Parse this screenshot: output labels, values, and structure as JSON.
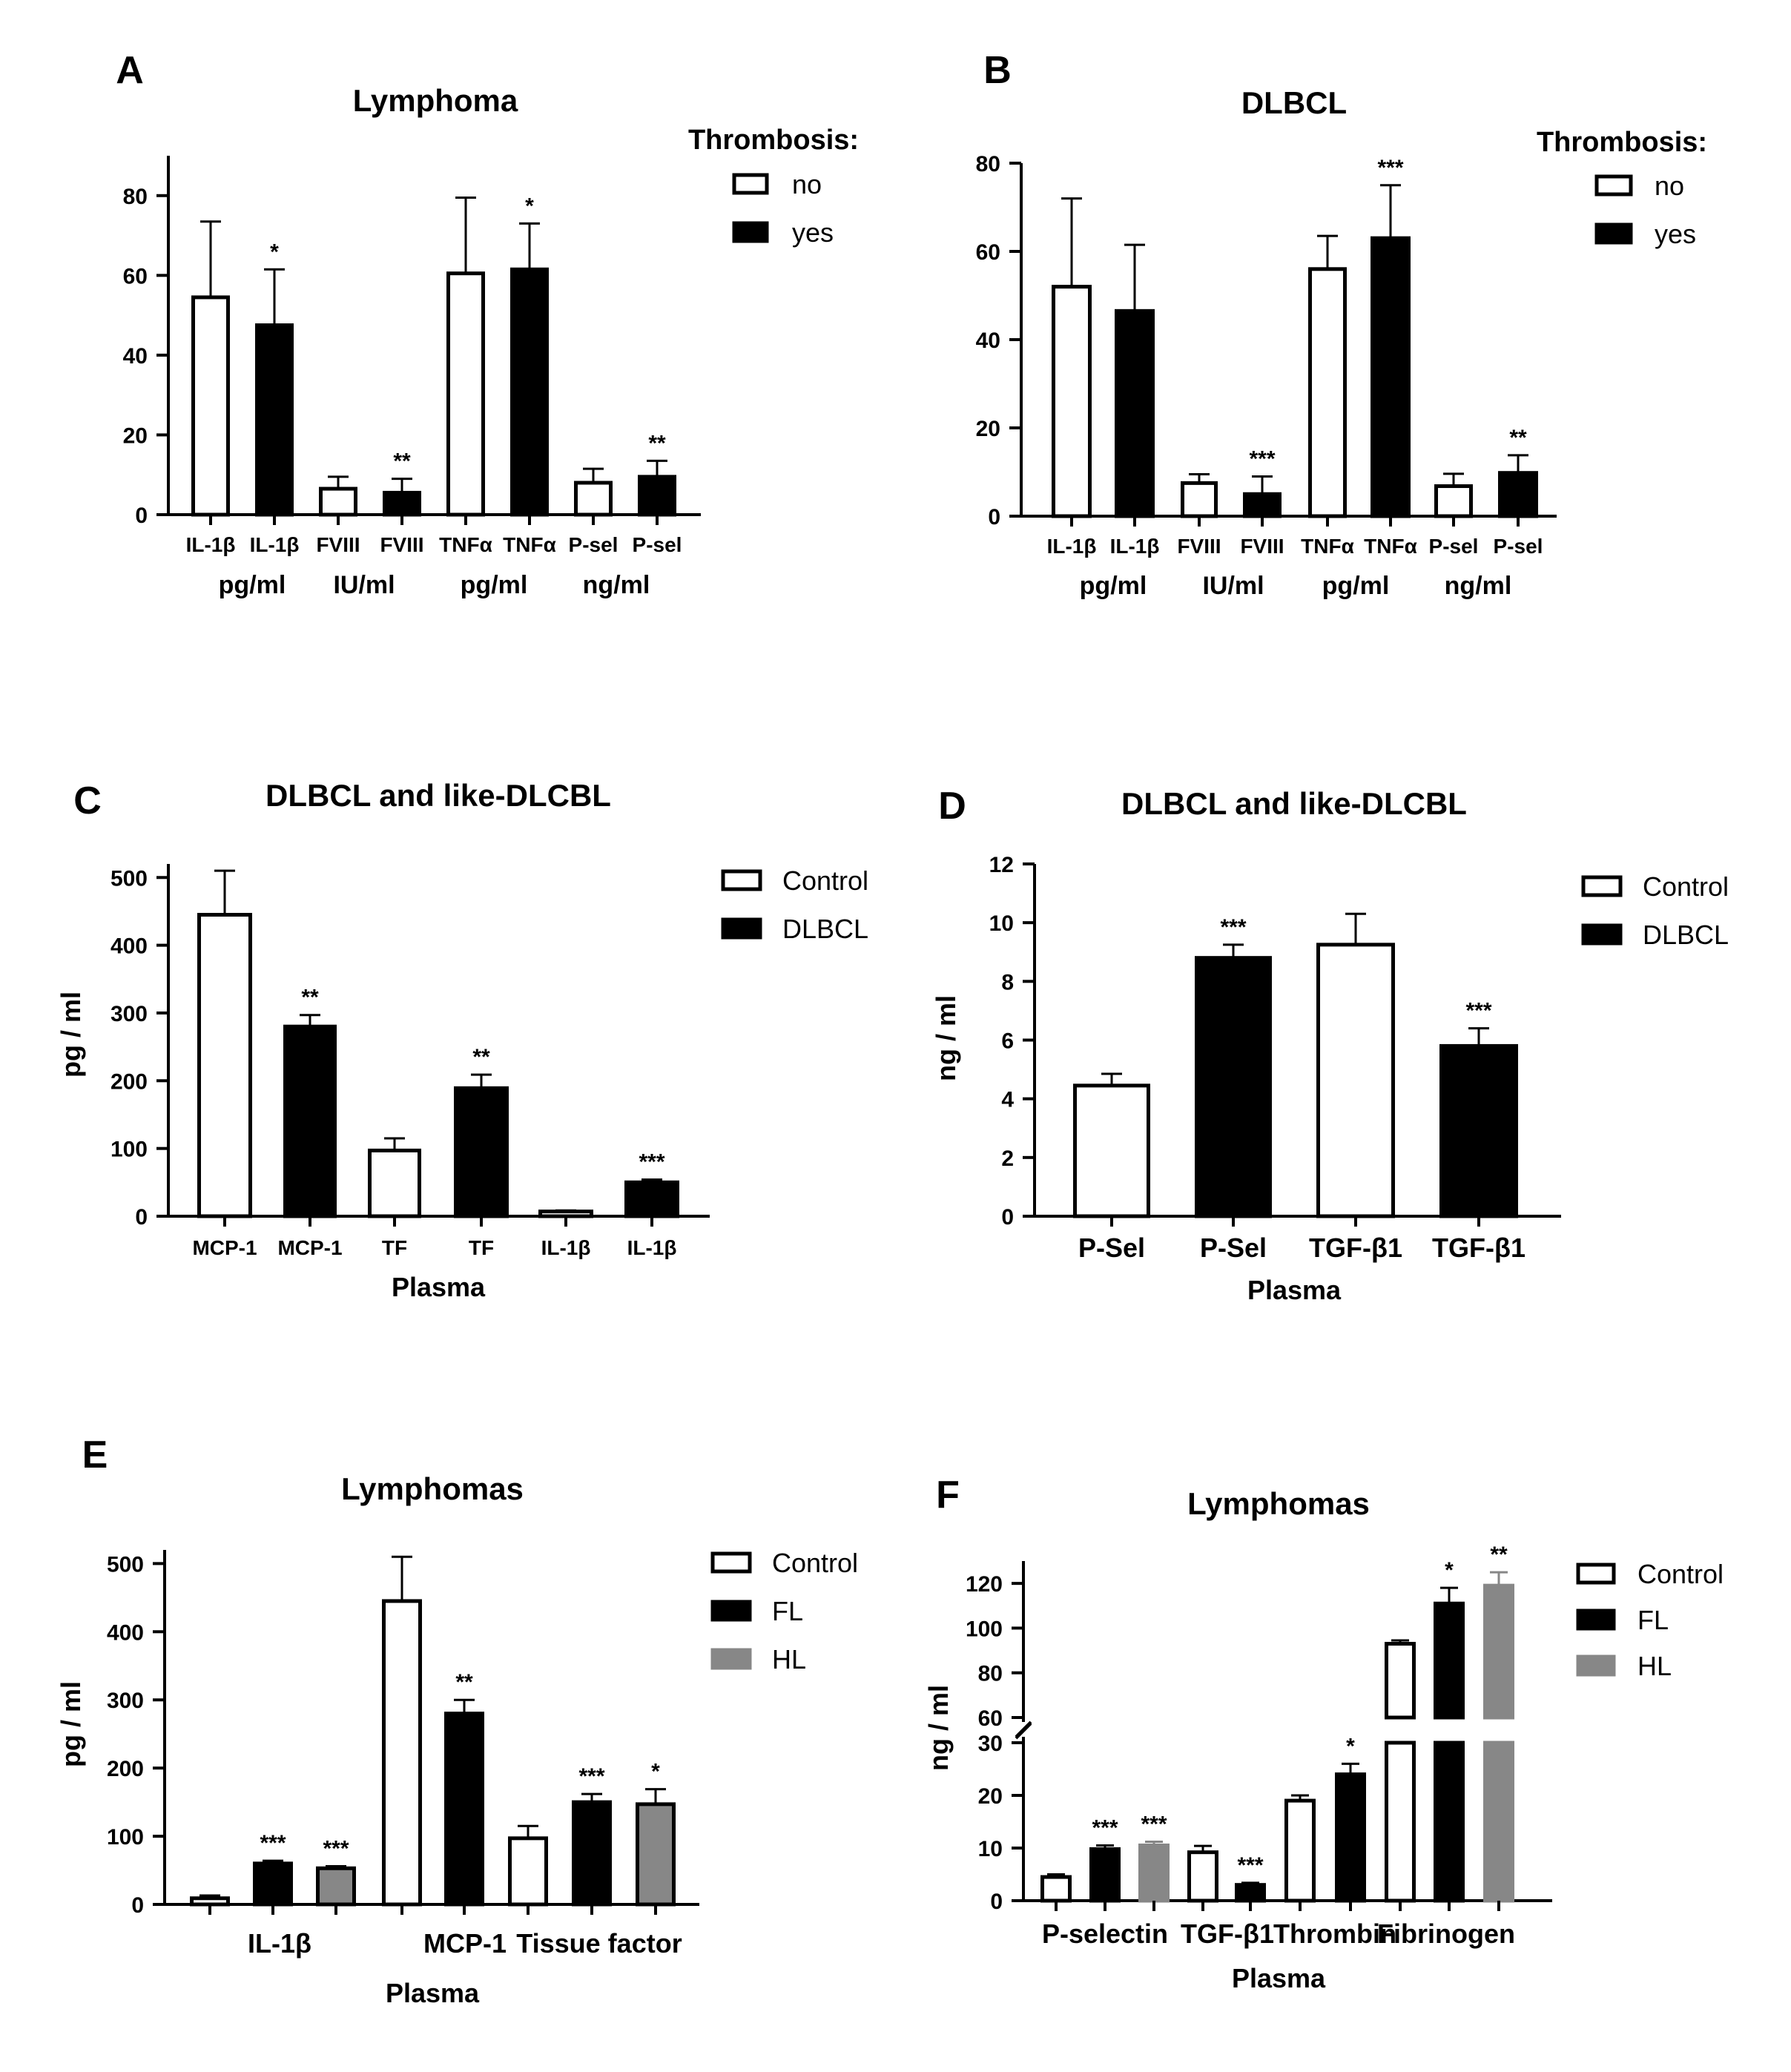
{
  "chart_data": [
    {
      "panel": "A",
      "type": "bar",
      "title": "Lymphoma",
      "legend_title": "Thrombosis:",
      "legend": [
        {
          "name": "no",
          "fill": "#ffffff"
        },
        {
          "name": "yes",
          "fill": "#000000"
        }
      ],
      "ylim": [
        0,
        90
      ],
      "yticks": [
        0,
        20,
        40,
        60,
        80
      ],
      "xlabel": "",
      "ylabel": "",
      "bars": [
        {
          "label": "IL-1β",
          "series": "no",
          "value": 54.5,
          "error": 19,
          "sig": ""
        },
        {
          "label": "IL-1β",
          "series": "yes",
          "value": 47.5,
          "error": 14,
          "sig": "*"
        },
        {
          "label": "FVIII",
          "series": "no",
          "value": 6.5,
          "error": 3,
          "sig": ""
        },
        {
          "label": "FVIII",
          "series": "yes",
          "value": 5.5,
          "error": 3.5,
          "sig": "**"
        },
        {
          "label": "TNFα",
          "series": "no",
          "value": 60.5,
          "error": 19,
          "sig": ""
        },
        {
          "label": "TNFα",
          "series": "yes",
          "value": 61.5,
          "error": 11.5,
          "sig": "*"
        },
        {
          "label": "P-sel",
          "series": "no",
          "value": 8,
          "error": 3.5,
          "sig": ""
        },
        {
          "label": "P-sel",
          "series": "yes",
          "value": 9.5,
          "error": 4,
          "sig": "**"
        }
      ],
      "units": [
        "pg/ml",
        "IU/ml",
        "pg/ml",
        "ng/ml"
      ]
    },
    {
      "panel": "B",
      "type": "bar",
      "title": "DLBCL",
      "legend_title": "Thrombosis:",
      "legend": [
        {
          "name": "no",
          "fill": "#ffffff"
        },
        {
          "name": "yes",
          "fill": "#000000"
        }
      ],
      "ylim": [
        0,
        80
      ],
      "yticks": [
        0,
        20,
        40,
        60,
        80
      ],
      "xlabel": "",
      "ylabel": "",
      "bars": [
        {
          "label": "IL-1β",
          "series": "no",
          "value": 52,
          "error": 20,
          "sig": ""
        },
        {
          "label": "IL-1β",
          "series": "yes",
          "value": 46.5,
          "error": 15,
          "sig": ""
        },
        {
          "label": "FVIII",
          "series": "no",
          "value": 7.5,
          "error": 2,
          "sig": ""
        },
        {
          "label": "FVIII",
          "series": "yes",
          "value": 5,
          "error": 4,
          "sig": "***"
        },
        {
          "label": "TNFα",
          "series": "no",
          "value": 56,
          "error": 7.5,
          "sig": ""
        },
        {
          "label": "TNFα",
          "series": "yes",
          "value": 63,
          "error": 12,
          "sig": "***"
        },
        {
          "label": "P-sel",
          "series": "no",
          "value": 6.8,
          "error": 2.8,
          "sig": ""
        },
        {
          "label": "P-sel",
          "series": "yes",
          "value": 9.8,
          "error": 4,
          "sig": "**"
        }
      ],
      "units": [
        "pg/ml",
        "IU/ml",
        "pg/ml",
        "ng/ml"
      ]
    },
    {
      "panel": "C",
      "type": "bar",
      "title": "DLBCL and like-DLCBL",
      "legend": [
        {
          "name": "Control",
          "fill": "#ffffff"
        },
        {
          "name": "DLBCL",
          "fill": "#000000"
        }
      ],
      "ylim": [
        0,
        520
      ],
      "yticks": [
        0,
        100,
        200,
        300,
        400,
        500
      ],
      "xlabel": "Plasma",
      "ylabel": "pg / ml",
      "bars": [
        {
          "label": "MCP-1",
          "series": "Control",
          "value": 445,
          "error": 65,
          "sig": ""
        },
        {
          "label": "MCP-1",
          "series": "DLBCL",
          "value": 280,
          "error": 17,
          "sig": "**"
        },
        {
          "label": "TF",
          "series": "Control",
          "value": 97,
          "error": 18,
          "sig": ""
        },
        {
          "label": "TF",
          "series": "DLBCL",
          "value": 189,
          "error": 20,
          "sig": "**"
        },
        {
          "label": "IL-1β",
          "series": "Control",
          "value": 7,
          "error": 1.5,
          "sig": ""
        },
        {
          "label": "IL-1β",
          "series": "DLBCL",
          "value": 50,
          "error": 4,
          "sig": "***"
        }
      ]
    },
    {
      "panel": "D",
      "type": "bar",
      "title": "DLBCL and like-DLCBL",
      "legend": [
        {
          "name": "Control",
          "fill": "#ffffff"
        },
        {
          "name": "DLBCL",
          "fill": "#000000"
        }
      ],
      "ylim": [
        0,
        12
      ],
      "yticks": [
        0,
        2,
        4,
        6,
        8,
        10,
        12
      ],
      "xlabel": "Plasma",
      "ylabel": "ng / ml",
      "bars": [
        {
          "label": "P-Sel",
          "series": "Control",
          "value": 4.45,
          "error": 0.4,
          "sig": ""
        },
        {
          "label": "P-Sel",
          "series": "DLBCL",
          "value": 8.8,
          "error": 0.45,
          "sig": "***"
        },
        {
          "label": "TGF-β1",
          "series": "Control",
          "value": 9.25,
          "error": 1.05,
          "sig": ""
        },
        {
          "label": "TGF-β1",
          "series": "DLBCL",
          "value": 5.8,
          "error": 0.6,
          "sig": "***"
        }
      ]
    },
    {
      "panel": "E",
      "type": "bar",
      "title": "Lymphomas",
      "legend": [
        {
          "name": "Control",
          "fill": "#ffffff"
        },
        {
          "name": "FL",
          "fill": "#000000"
        },
        {
          "name": "HL",
          "fill": "#878787"
        }
      ],
      "ylim": [
        0,
        520
      ],
      "yticks": [
        0,
        100,
        200,
        300,
        400,
        500
      ],
      "xlabel": "Plasma",
      "ylabel": "pg / ml",
      "groups": [
        "IL-1β",
        "MCP-1",
        "Tissue factor"
      ],
      "bars": [
        {
          "group": 0,
          "series": "Control",
          "value": 9,
          "error": 4,
          "sig": ""
        },
        {
          "group": 0,
          "series": "FL",
          "value": 60,
          "error": 4,
          "sig": "***"
        },
        {
          "group": 0,
          "series": "HL",
          "value": 53,
          "error": 3,
          "sig": "***"
        },
        {
          "group": 1,
          "series": "Control",
          "value": 445,
          "error": 65,
          "sig": ""
        },
        {
          "group": 1,
          "series": "FL",
          "value": 280,
          "error": 20,
          "sig": "**"
        },
        {
          "group": 2,
          "series": "Control",
          "value": 97,
          "error": 18,
          "sig": ""
        },
        {
          "group": 2,
          "series": "FL",
          "value": 150,
          "error": 12,
          "sig": "***"
        },
        {
          "group": 2,
          "series": "HL",
          "value": 147,
          "error": 22,
          "sig": "*"
        }
      ]
    },
    {
      "panel": "F",
      "type": "bar",
      "title": "Lymphomas",
      "legend": [
        {
          "name": "Control",
          "fill": "#ffffff"
        },
        {
          "name": "FL",
          "fill": "#000000"
        },
        {
          "name": "HL",
          "fill": "#878787"
        }
      ],
      "axis_break": {
        "lower_ylim": [
          0,
          30
        ],
        "upper_ylim": [
          60,
          130
        ]
      },
      "yticks_lower": [
        0,
        10,
        20,
        30
      ],
      "yticks_upper": [
        60,
        80,
        100,
        120
      ],
      "xlabel": "Plasma",
      "ylabel": "ng / ml",
      "groups": [
        "P-selectin",
        "TGF-β1",
        "Thrombin",
        "Fibrinogen"
      ],
      "bars": [
        {
          "group": 0,
          "series": "Control",
          "value": 4.5,
          "error": 0.5,
          "sig": ""
        },
        {
          "group": 0,
          "series": "FL",
          "value": 9.8,
          "error": 0.7,
          "sig": "***"
        },
        {
          "group": 0,
          "series": "HL",
          "value": 10.5,
          "error": 0.7,
          "sig": "***"
        },
        {
          "group": 1,
          "series": "Control",
          "value": 9.2,
          "error": 1.2,
          "sig": ""
        },
        {
          "group": 1,
          "series": "FL",
          "value": 3,
          "error": 0.4,
          "sig": "***"
        },
        {
          "group": 2,
          "series": "Control",
          "value": 19,
          "error": 1,
          "sig": ""
        },
        {
          "group": 2,
          "series": "FL",
          "value": 24,
          "error": 2,
          "sig": "*"
        },
        {
          "group": 3,
          "series": "Control",
          "value": 93,
          "error": 1.5,
          "sig": ""
        },
        {
          "group": 3,
          "series": "FL",
          "value": 111,
          "error": 7,
          "sig": "*"
        },
        {
          "group": 3,
          "series": "HL",
          "value": 119,
          "error": 6,
          "sig": "**"
        }
      ]
    }
  ]
}
